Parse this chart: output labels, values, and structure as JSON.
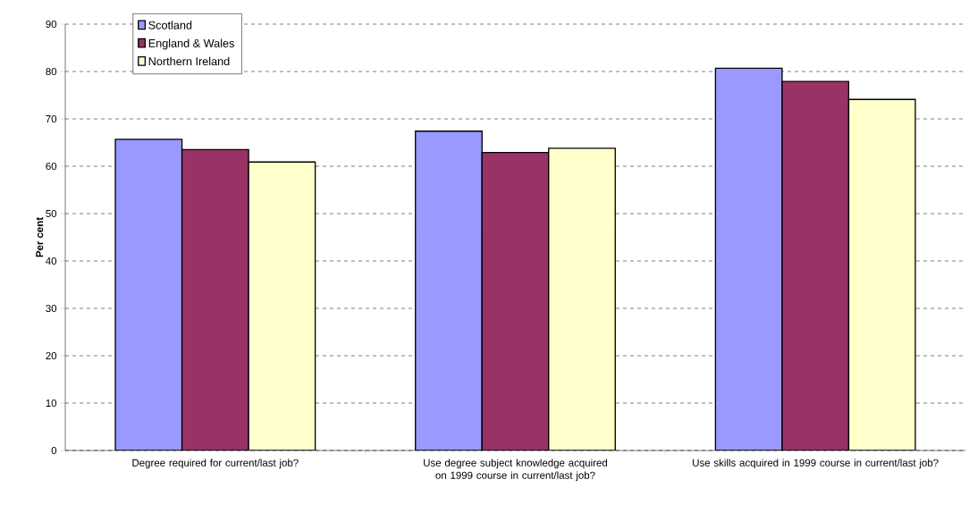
{
  "chart_data": {
    "type": "bar",
    "ylabel": "Per cent",
    "categories": [
      "Degree required for current/last job?",
      "Use degree subject knowledge acquired on 1999 course in current/last job?",
      "Use skills acquired in 1999 course in current/last job?"
    ],
    "series": [
      {
        "name": "Scotland",
        "color": "#9999ff",
        "values": [
          65.7,
          67.4,
          80.7
        ]
      },
      {
        "name": "England & Wales",
        "color": "#993366",
        "values": [
          63.5,
          62.9,
          77.9
        ]
      },
      {
        "name": "Northern Ireland",
        "color": "#ffffcc",
        "values": [
          60.9,
          63.8,
          74.1
        ]
      }
    ],
    "ylim": [
      0,
      90
    ],
    "yticks": [
      0,
      10,
      20,
      30,
      40,
      50,
      60,
      70,
      80,
      90
    ],
    "grid": "y",
    "legend": "top left"
  }
}
